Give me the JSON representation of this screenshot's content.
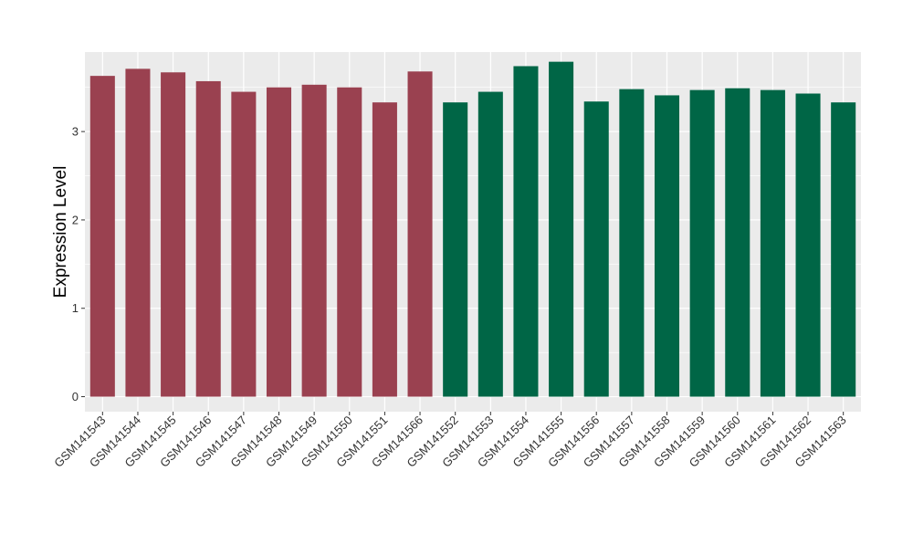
{
  "chart_data": {
    "type": "bar",
    "title": "",
    "xlabel": "",
    "ylabel": "Expression Level",
    "ylim": [
      -0.17,
      3.9
    ],
    "yticks": [
      0,
      1,
      2,
      3
    ],
    "grid": true,
    "legend": "none",
    "colors": {
      "group1": "#9a4150",
      "group2": "#006646",
      "panel": "#ebebeb",
      "gridline": "#ffffff"
    },
    "categories": [
      "GSM141543",
      "GSM141544",
      "GSM141545",
      "GSM141546",
      "GSM141547",
      "GSM141548",
      "GSM141549",
      "GSM141550",
      "GSM141551",
      "GSM141566",
      "GSM141552",
      "GSM141553",
      "GSM141554",
      "GSM141555",
      "GSM141556",
      "GSM141557",
      "GSM141558",
      "GSM141559",
      "GSM141560",
      "GSM141561",
      "GSM141562",
      "GSM141563"
    ],
    "values": [
      3.63,
      3.71,
      3.67,
      3.57,
      3.45,
      3.5,
      3.53,
      3.5,
      3.33,
      3.68,
      3.33,
      3.45,
      3.74,
      3.79,
      3.34,
      3.48,
      3.41,
      3.47,
      3.49,
      3.47,
      3.43,
      3.33
    ],
    "groups": [
      1,
      1,
      1,
      1,
      1,
      1,
      1,
      1,
      1,
      1,
      2,
      2,
      2,
      2,
      2,
      2,
      2,
      2,
      2,
      2,
      2,
      2
    ]
  }
}
